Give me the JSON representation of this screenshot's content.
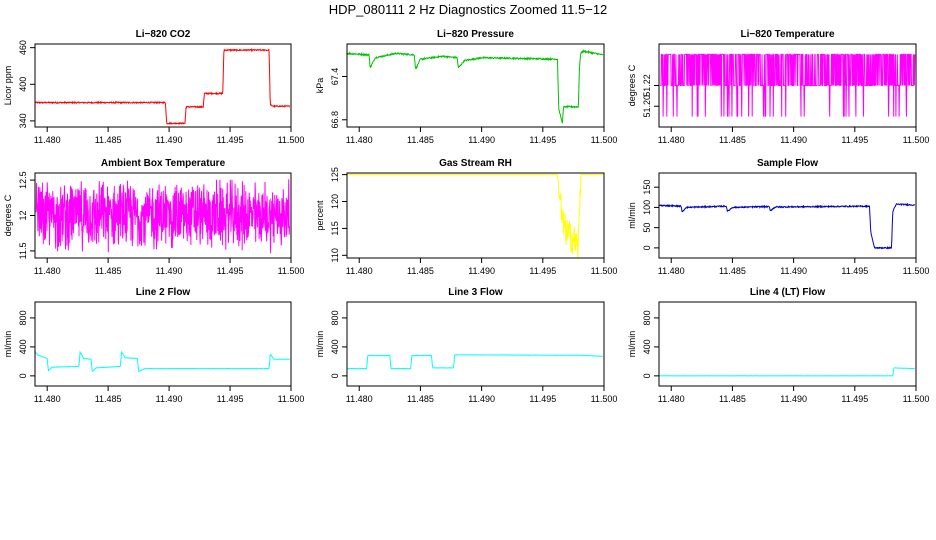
{
  "figure": {
    "title": "HDP_080111  2 Hz Diagnostics Zoomed 11.5−12"
  },
  "chart_data": [
    {
      "type": "line",
      "title": "Li−820 CO2",
      "xlabel": "",
      "ylabel": "Licor ppm",
      "xlim": [
        11.479,
        11.5
      ],
      "ylim": [
        330,
        466
      ],
      "xticks": [
        11.48,
        11.485,
        11.49,
        11.495,
        11.5
      ],
      "xtick_labels": [
        "11.480",
        "11.485",
        "11.490",
        "11.495",
        "11.500"
      ],
      "yticks": [
        340,
        400,
        460
      ],
      "ytick_labels": [
        "340",
        "400",
        "460"
      ],
      "color": "#ff0000",
      "noise": 1,
      "series": [
        {
          "x": [
            11.479,
            11.4897,
            11.4898,
            11.4913,
            11.4914,
            11.4928,
            11.4929,
            11.4944,
            11.4945,
            11.4982,
            11.4983,
            11.4986,
            11.4999
          ],
          "y": [
            370,
            370,
            336,
            336,
            363,
            363,
            385,
            385,
            456,
            456,
            366,
            364,
            364
          ]
        }
      ]
    },
    {
      "type": "line",
      "title": "Li−820 Pressure",
      "xlabel": "",
      "ylabel": "kPa",
      "xlim": [
        11.479,
        11.5
      ],
      "ylim": [
        66.7,
        67.85
      ],
      "xticks": [
        11.48,
        11.485,
        11.49,
        11.495,
        11.5
      ],
      "xtick_labels": [
        "11.480",
        "11.485",
        "11.490",
        "11.495",
        "11.500"
      ],
      "yticks": [
        66.8,
        67.4
      ],
      "ytick_labels": [
        "66.8",
        "67.4"
      ],
      "color": "#00c000",
      "noise": 0.01,
      "series": [
        {
          "x": [
            11.479,
            11.4808,
            11.4809,
            11.4813,
            11.483,
            11.4845,
            11.4846,
            11.485,
            11.4868,
            11.488,
            11.4881,
            11.4886,
            11.49,
            11.4962,
            11.4963,
            11.4966,
            11.4967,
            11.4979,
            11.498,
            11.4981,
            11.4983,
            11.4999
          ],
          "y": [
            67.72,
            67.7,
            67.52,
            67.66,
            67.72,
            67.7,
            67.5,
            67.64,
            67.68,
            67.66,
            67.52,
            67.62,
            67.66,
            67.64,
            66.95,
            66.75,
            66.98,
            66.98,
            67.55,
            67.72,
            67.75,
            67.7
          ]
        }
      ]
    },
    {
      "type": "line",
      "title": "Li−820 Temperature",
      "xlabel": "",
      "ylabel": "degrees C",
      "xlim": [
        11.479,
        11.5
      ],
      "ylim": [
        51.18,
        51.26
      ],
      "xticks": [
        11.48,
        11.485,
        11.49,
        11.495,
        11.5
      ],
      "xtick_labels": [
        "11.480",
        "11.485",
        "11.490",
        "11.495",
        "11.500"
      ],
      "yticks": [
        51.2,
        51.22
      ],
      "ytick_labels": [
        "51.20",
        "51.22"
      ],
      "color": "#ff00ff",
      "quantized": true,
      "levels": [
        51.19,
        51.22,
        51.25
      ],
      "x_start": 11.4791,
      "x_end": 11.4999
    },
    {
      "type": "line",
      "title": "Ambient Box Temperature",
      "xlabel": "",
      "ylabel": "degrees C",
      "xlim": [
        11.479,
        11.5
      ],
      "ylim": [
        11.4,
        12.6
      ],
      "xticks": [
        11.48,
        11.485,
        11.49,
        11.495,
        11.5
      ],
      "xtick_labels": [
        "11.480",
        "11.485",
        "11.490",
        "11.495",
        "11.500"
      ],
      "yticks": [
        11.5,
        12.0,
        12.5
      ],
      "ytick_labels": [
        "11.5",
        "12",
        "12.5"
      ],
      "color": "#ff00ff",
      "dense_noise": true,
      "center": 12.0,
      "amplitude": 0.55,
      "x_start": 11.4791,
      "x_end": 11.4999
    },
    {
      "type": "line",
      "title": "Gas Stream RH",
      "xlabel": "",
      "ylabel": "percent",
      "xlim": [
        11.479,
        11.5
      ],
      "ylim": [
        109.5,
        125.3
      ],
      "xticks": [
        11.48,
        11.485,
        11.49,
        11.495,
        11.5
      ],
      "xtick_labels": [
        "11.480",
        "11.485",
        "11.490",
        "11.495",
        "11.500"
      ],
      "yticks": [
        110,
        115,
        120,
        125
      ],
      "ytick_labels": [
        "110",
        "115",
        "120",
        "125"
      ],
      "color": "#ffff00",
      "noise": 0,
      "series": [
        {
          "x": [
            11.479,
            11.4962,
            11.4964,
            11.4966,
            11.497,
            11.4975,
            11.4979,
            11.4981,
            11.4983,
            11.4999
          ],
          "y": [
            125,
            125,
            121,
            116,
            114,
            113,
            111.5,
            125,
            125,
            125
          ]
        }
      ],
      "noisy_range": [
        11.4963,
        11.4981
      ],
      "noisy_amplitude": 3
    },
    {
      "type": "line",
      "title": "Sample Flow",
      "xlabel": "",
      "ylabel": "ml/min",
      "xlim": [
        11.479,
        11.5
      ],
      "ylim": [
        -25,
        185
      ],
      "xticks": [
        11.48,
        11.485,
        11.49,
        11.495,
        11.5
      ],
      "xtick_labels": [
        "11.480",
        "11.485",
        "11.490",
        "11.495",
        "11.500"
      ],
      "yticks": [
        0,
        50,
        100,
        150
      ],
      "ytick_labels": [
        "0",
        "50",
        "100",
        "150"
      ],
      "color": "#0000c0",
      "noise": 1.5,
      "series": [
        {
          "x": [
            11.479,
            11.4808,
            11.4809,
            11.4812,
            11.4845,
            11.4846,
            11.485,
            11.488,
            11.4881,
            11.4885,
            11.4962,
            11.4963,
            11.4966,
            11.498,
            11.4981,
            11.4984,
            11.4999
          ],
          "y": [
            105,
            103,
            88,
            100,
            103,
            90,
            100,
            102,
            92,
            101,
            103,
            40,
            0,
            0,
            90,
            108,
            106
          ]
        }
      ]
    },
    {
      "type": "line",
      "title": "Line 2 Flow",
      "xlabel": "",
      "ylabel": "ml/min",
      "xlim": [
        11.479,
        11.5
      ],
      "ylim": [
        -140,
        1020
      ],
      "xticks": [
        11.48,
        11.485,
        11.49,
        11.495,
        11.5
      ],
      "xtick_labels": [
        "11.480",
        "11.485",
        "11.490",
        "11.495",
        "11.500"
      ],
      "yticks": [
        0,
        400,
        800
      ],
      "ytick_labels": [
        "0",
        "400",
        "800"
      ],
      "color": "#00ffff",
      "noise": 2,
      "series": [
        {
          "x": [
            11.479,
            11.4792,
            11.48,
            11.4801,
            11.4804,
            11.4826,
            11.4827,
            11.483,
            11.4836,
            11.4837,
            11.484,
            11.486,
            11.4861,
            11.4864,
            11.4874,
            11.4875,
            11.488,
            11.4982,
            11.4983,
            11.4986,
            11.4999
          ],
          "y": [
            340,
            290,
            240,
            70,
            120,
            130,
            330,
            240,
            230,
            60,
            110,
            130,
            330,
            250,
            240,
            60,
            100,
            100,
            300,
            230,
            230
          ]
        }
      ]
    },
    {
      "type": "line",
      "title": "Line 3 Flow",
      "xlabel": "",
      "ylabel": "ml/min",
      "xlim": [
        11.479,
        11.5
      ],
      "ylim": [
        -140,
        1020
      ],
      "xticks": [
        11.48,
        11.485,
        11.49,
        11.495,
        11.5
      ],
      "xtick_labels": [
        "11.480",
        "11.485",
        "11.490",
        "11.495",
        "11.500"
      ],
      "yticks": [
        0,
        400,
        800
      ],
      "ytick_labels": [
        "0",
        "400",
        "800"
      ],
      "color": "#00ffff",
      "noise": 2,
      "series": [
        {
          "x": [
            11.479,
            11.4806,
            11.4807,
            11.4825,
            11.4826,
            11.4842,
            11.4843,
            11.4859,
            11.486,
            11.4877,
            11.4878,
            11.498,
            11.4999
          ],
          "y": [
            100,
            100,
            280,
            280,
            100,
            100,
            280,
            280,
            110,
            110,
            290,
            285,
            270
          ]
        }
      ]
    },
    {
      "type": "line",
      "title": "Line 4 (LT) Flow",
      "xlabel": "",
      "ylabel": "ml/min",
      "xlim": [
        11.479,
        11.5
      ],
      "ylim": [
        -140,
        1020
      ],
      "xticks": [
        11.48,
        11.485,
        11.49,
        11.495,
        11.5
      ],
      "xtick_labels": [
        "11.480",
        "11.485",
        "11.490",
        "11.495",
        "11.500"
      ],
      "yticks": [
        0,
        400,
        800
      ],
      "ytick_labels": [
        "0",
        "400",
        "800"
      ],
      "color": "#00ffff",
      "noise": 1,
      "series": [
        {
          "x": [
            11.479,
            11.4981,
            11.4982,
            11.4999
          ],
          "y": [
            0,
            0,
            110,
            100
          ]
        }
      ]
    }
  ]
}
